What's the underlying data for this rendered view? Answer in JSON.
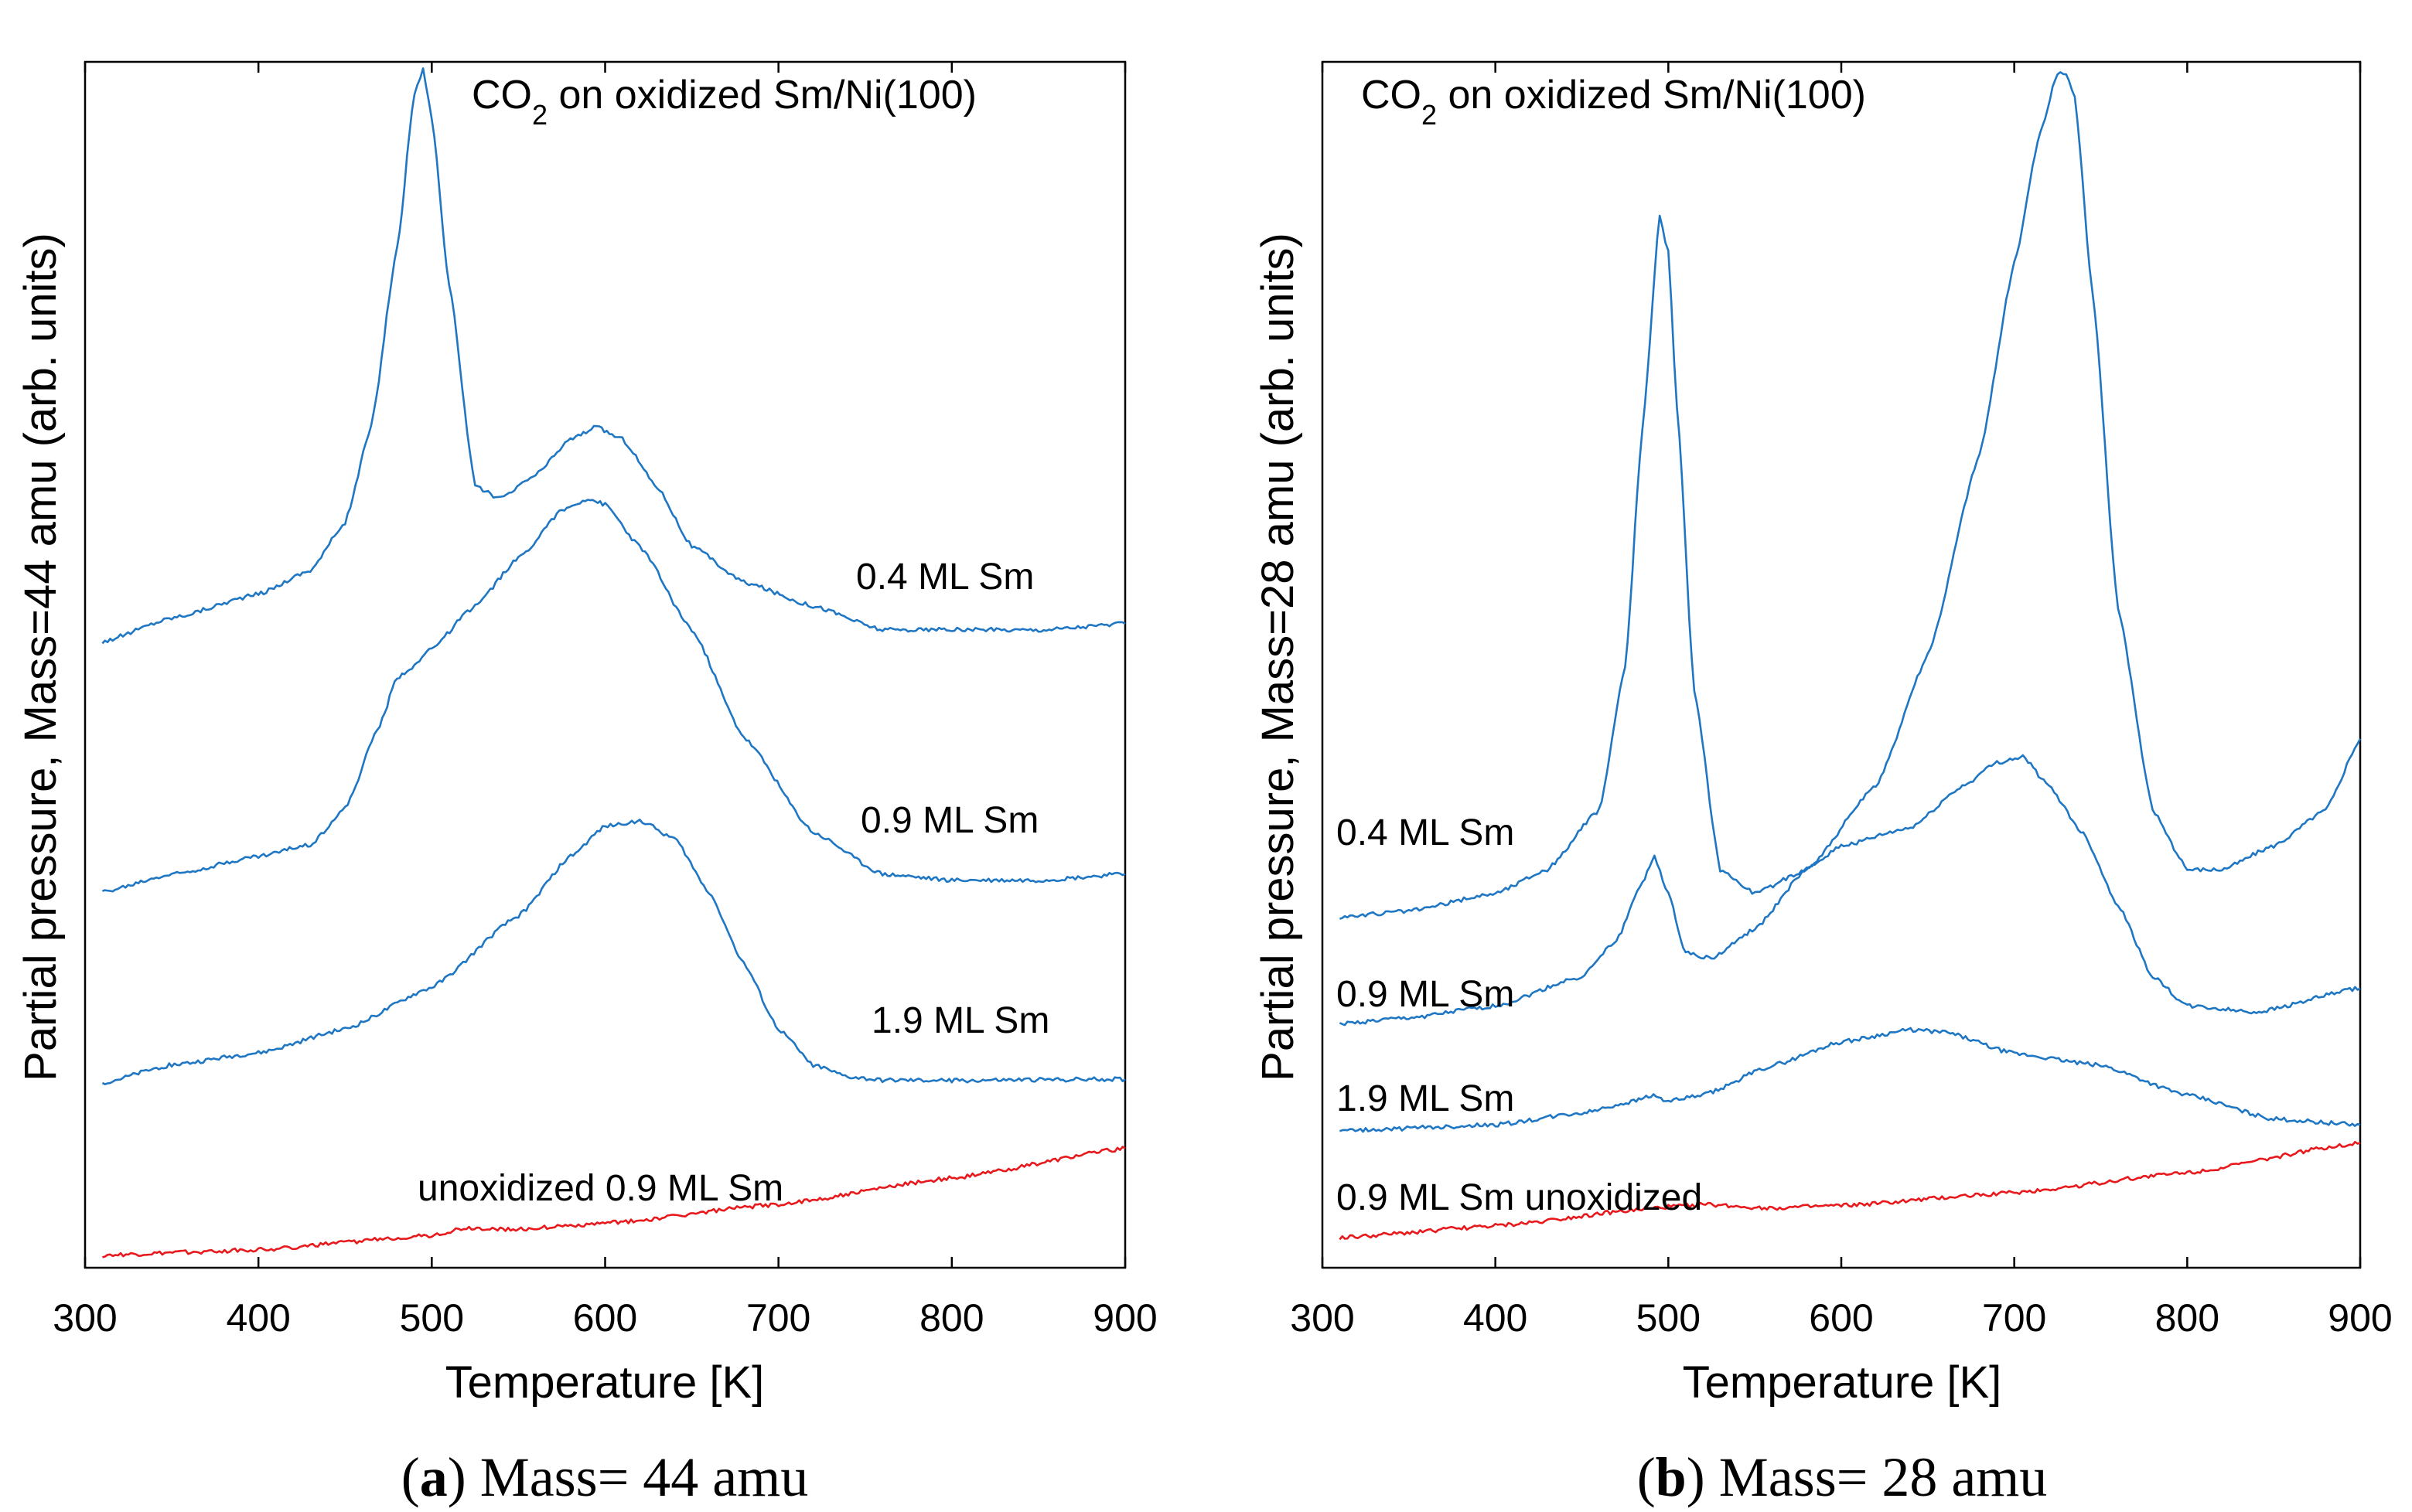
{
  "colors": {
    "blue": "#1f77c4",
    "red": "#e8191c",
    "axis": "#000000"
  },
  "panels": [
    {
      "caption_letter": "a",
      "caption_rest": " Mass= 44 amu",
      "title_main": "CO",
      "title_sub": "2",
      "title_rest": " on oxidized Sm/Ni(100)",
      "xlabel": "Temperature [K]",
      "ylabel": "Partial pressure, Mass=44 amu (arb. units)",
      "xticks": [
        "300",
        "400",
        "500",
        "600",
        "700",
        "800",
        "900"
      ]
    },
    {
      "caption_letter": "b",
      "caption_rest": " Mass= 28 amu",
      "title_main": "CO",
      "title_sub": "2",
      "title_rest": " on oxidized Sm/Ni(100)",
      "xlabel": "Temperature [K]",
      "ylabel": "Partial pressure, Mass=28 amu (arb. units)",
      "xticks": [
        "300",
        "400",
        "500",
        "600",
        "700",
        "800",
        "900"
      ]
    }
  ],
  "chart_data": [
    {
      "type": "line",
      "title": "CO2 on oxidized Sm/Ni(100)",
      "xlabel": "Temperature [K]",
      "ylabel": "Partial pressure, Mass=44 amu (arb. units)",
      "xlim": [
        300,
        900
      ],
      "ylim": [
        0,
        100
      ],
      "series": [
        {
          "name": "0.4 ML Sm",
          "label": "0.4 ML Sm",
          "color": "#1f77c4",
          "x": [
            310,
            350,
            400,
            430,
            450,
            465,
            480,
            490,
            495,
            500,
            510,
            525,
            540,
            560,
            580,
            595,
            610,
            630,
            650,
            680,
            720,
            760,
            800,
            850,
            900
          ],
          "y": [
            52,
            54,
            56,
            58,
            62,
            70,
            85,
            98,
            100,
            96,
            82,
            65,
            64,
            66,
            69,
            70,
            69,
            65,
            60,
            57,
            55,
            53,
            53,
            53,
            53.5
          ]
        },
        {
          "name": "0.9 ML Sm",
          "label": "0.9 ML Sm",
          "color": "#1f77c4",
          "x": [
            310,
            350,
            400,
            430,
            450,
            470,
            480,
            490,
            500,
            525,
            550,
            575,
            590,
            600,
            620,
            650,
            680,
            720,
            760,
            800,
            850,
            900
          ],
          "y": [
            31,
            32.5,
            34,
            35,
            38,
            45,
            49,
            50,
            51.5,
            55,
            59,
            63,
            64,
            63.5,
            60,
            53,
            44,
            36,
            32.5,
            32,
            32,
            32.5
          ]
        },
        {
          "name": "1.9 ML Sm",
          "label": "1.9 ML Sm",
          "color": "#1f77c4",
          "x": [
            310,
            350,
            400,
            450,
            500,
            550,
            580,
            600,
            620,
            640,
            660,
            680,
            700,
            720,
            740,
            760,
            800,
            900
          ],
          "y": [
            15,
            16.5,
            17.5,
            19.5,
            23,
            29,
            34,
            36.5,
            37,
            35.5,
            31,
            25,
            19.5,
            16.5,
            15.5,
            15.2,
            15.2,
            15.3
          ]
        },
        {
          "name": "unoxidized 0.9 ML Sm",
          "label": "unoxidized 0.9 ML Sm",
          "color": "#e8191c",
          "x": [
            310,
            400,
            500,
            520,
            550,
            580,
            600,
            700,
            800,
            900
          ],
          "y": [
            0.5,
            1.0,
            2.2,
            2.8,
            2.7,
            3.0,
            3.2,
            4.8,
            7.0,
            9.5
          ]
        }
      ]
    },
    {
      "type": "line",
      "title": "CO2 on oxidized Sm/Ni(100)",
      "xlabel": "Temperature [K]",
      "ylabel": "Partial pressure, Mass=28 amu (arb. units)",
      "xlim": [
        300,
        900
      ],
      "ylim": [
        0,
        100
      ],
      "series": [
        {
          "name": "0.4 ML Sm",
          "label": "0.4 ML Sm",
          "color": "#1f77c4",
          "x": [
            310,
            350,
            400,
            430,
            460,
            475,
            485,
            495,
            500,
            505,
            515,
            530,
            550,
            580,
            620,
            650,
            680,
            700,
            715,
            725,
            730,
            735,
            745,
            760,
            780,
            800,
            820,
            850,
            880,
            900
          ],
          "y": [
            29,
            29.5,
            31,
            33,
            38,
            50,
            70,
            88,
            85,
            72,
            48,
            33,
            31,
            33,
            40,
            51,
            68,
            84,
            95,
            100,
            100,
            98,
            82,
            55,
            38,
            33,
            33,
            35,
            38,
            44
          ]
        },
        {
          "name": "0.9 ML Sm",
          "label": "0.9 ML Sm",
          "color": "#1f77c4",
          "x": [
            310,
            350,
            400,
            450,
            470,
            485,
            492,
            500,
            510,
            525,
            550,
            580,
            600,
            640,
            670,
            690,
            705,
            720,
            740,
            760,
            780,
            800,
            840,
            900
          ],
          "y": [
            20,
            20.5,
            21.5,
            24,
            27,
            32,
            34,
            31,
            26,
            25.5,
            28,
            33,
            35,
            36.5,
            40,
            42,
            42.5,
            40,
            36,
            30,
            24,
            21.5,
            21,
            23
          ]
        },
        {
          "name": "1.9 ML Sm",
          "label": "1.9 ML Sm",
          "color": "#1f77c4",
          "x": [
            310,
            400,
            450,
            480,
            490,
            500,
            520,
            560,
            600,
            640,
            660,
            700,
            750,
            800,
            850,
            900
          ],
          "y": [
            11,
            11.5,
            12.5,
            13.5,
            14,
            13.5,
            14,
            16.5,
            18.5,
            19.5,
            19.3,
            17.5,
            16.5,
            14,
            12,
            11.5
          ]
        },
        {
          "name": "0.9 ML Sm unoxidized",
          "label": "0.9 ML Sm unoxidized",
          "color": "#e8191c",
          "x": [
            310,
            400,
            480,
            500,
            520,
            560,
            600,
            700,
            800,
            900
          ],
          "y": [
            2.0,
            3.0,
            4.3,
            4.6,
            4.8,
            4.5,
            4.7,
            5.8,
            7.5,
            10
          ]
        }
      ]
    }
  ]
}
